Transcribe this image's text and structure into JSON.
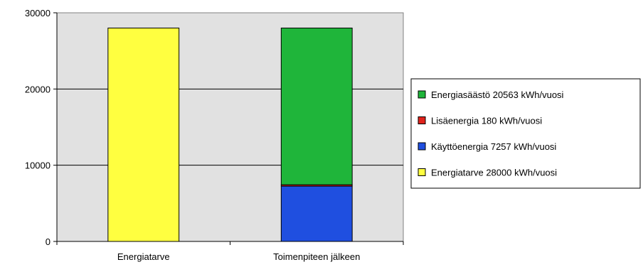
{
  "chart_data": {
    "type": "bar",
    "stacked": true,
    "categories": [
      "Energiatarve",
      "Toimenpiteen jälkeen"
    ],
    "ylim": [
      0,
      30000
    ],
    "yticks": [
      "0",
      "10000",
      "20000",
      "30000"
    ],
    "ytick_values": [
      0,
      10000,
      20000,
      30000
    ],
    "grid": true,
    "legend_position": "right",
    "colors": {
      "plot_background": "#e1e1e1",
      "bar_outline": "#000000"
    },
    "series": [
      {
        "name": "Käyttöenergia 7257 kWh/vuosi",
        "color": "#1f4fe0",
        "values": [
          0,
          7257
        ]
      },
      {
        "name": "Lisäenergia 180 kWh/vuosi",
        "color": "#e0231c",
        "values": [
          0,
          180
        ]
      },
      {
        "name": "Energiasäästö 20563 kWh/vuosi",
        "color": "#1fb53a",
        "values": [
          0,
          20563
        ]
      },
      {
        "name": "Energiatarve 28000 kWh/vuosi",
        "color": "#ffff40",
        "values": [
          28000,
          0
        ]
      }
    ],
    "legend_order": [
      "Energiasäästö 20563 kWh/vuosi",
      "Lisäenergia 180 kWh/vuosi",
      "Käyttöenergia 7257 kWh/vuosi",
      "Energiatarve 28000 kWh/vuosi"
    ]
  }
}
